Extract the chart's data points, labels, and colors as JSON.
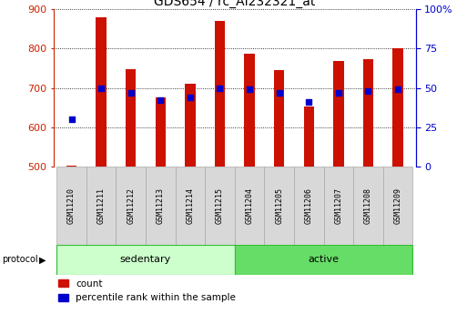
{
  "title": "GDS654 / rc_AI232321_at",
  "samples": [
    "GSM11210",
    "GSM11211",
    "GSM11212",
    "GSM11213",
    "GSM11214",
    "GSM11215",
    "GSM11204",
    "GSM11205",
    "GSM11206",
    "GSM11207",
    "GSM11208",
    "GSM11209"
  ],
  "counts": [
    502,
    880,
    747,
    675,
    710,
    870,
    787,
    745,
    652,
    768,
    773,
    800
  ],
  "percentiles": [
    30,
    50,
    47,
    42,
    44,
    50,
    49,
    47,
    41,
    47,
    48,
    49
  ],
  "ylim_left": [
    500,
    900
  ],
  "ylim_right": [
    0,
    100
  ],
  "yticks_left": [
    500,
    600,
    700,
    800,
    900
  ],
  "yticks_right": [
    0,
    25,
    50,
    75,
    100
  ],
  "bar_color": "#cc1100",
  "dot_color": "#0000cc",
  "grid_color": "#000000",
  "bg_color": "#ffffff",
  "sedentary_color": "#ccffcc",
  "active_color": "#66dd66",
  "left_axis_color": "#cc2200",
  "right_axis_color": "#0000cc",
  "bar_width": 0.35,
  "dot_size": 22,
  "n_sedentary": 6,
  "n_active": 6
}
